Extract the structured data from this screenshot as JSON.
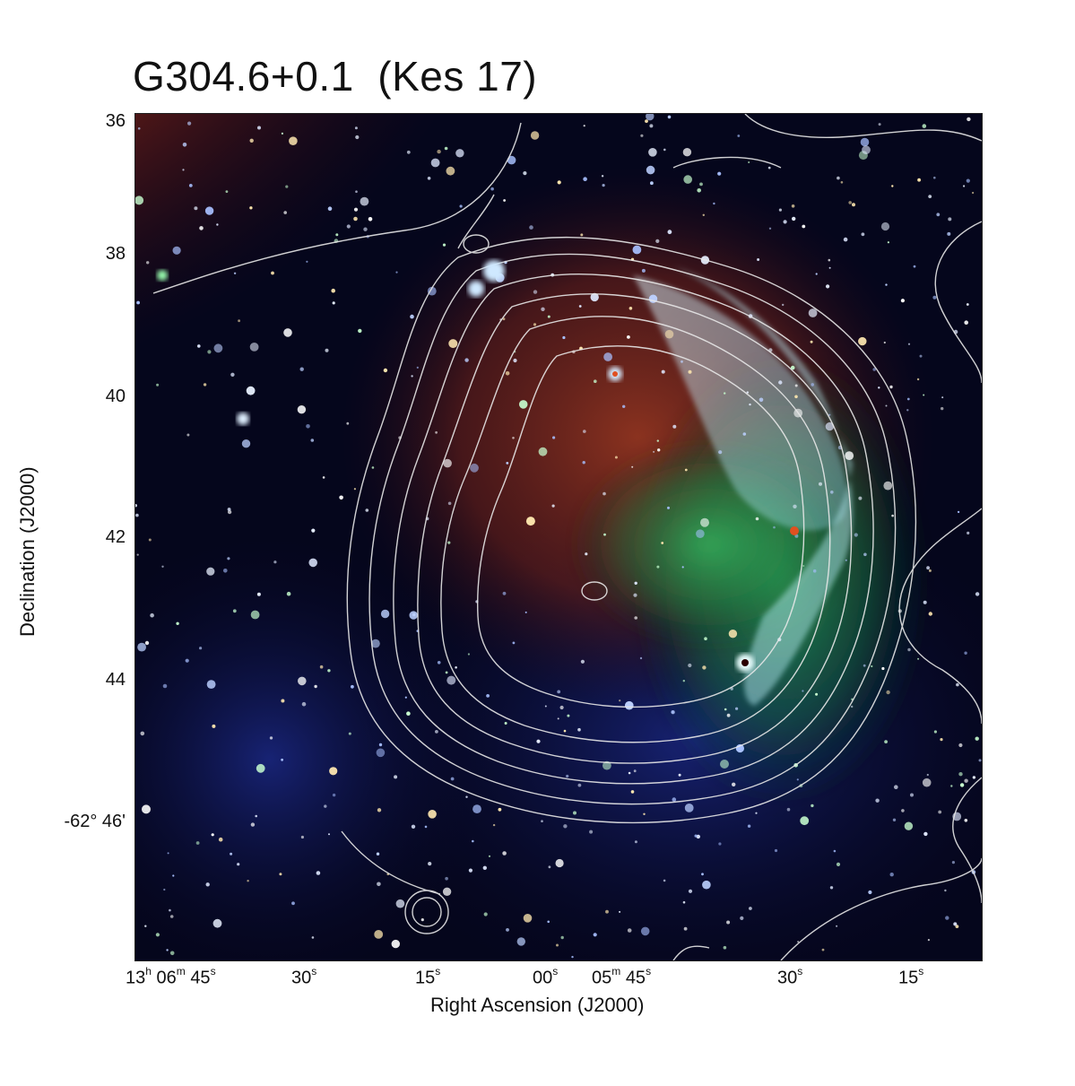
{
  "figure": {
    "title": "G304.6+0.1  (Kes 17)",
    "x_axis_label": "Right Ascension (J2000)",
    "y_axis_label": "Declination (J2000)",
    "y_ticks": [
      "36",
      "38",
      "40",
      "42",
      "44",
      "-62° 46'"
    ],
    "x_ticks": [
      {
        "h": "13",
        "m": "06",
        "s": "45"
      },
      {
        "s": "30"
      },
      {
        "s": "15"
      },
      {
        "s": "00"
      },
      {
        "m": "05",
        "s": "45"
      },
      {
        "s": "30"
      },
      {
        "s": "15"
      }
    ]
  },
  "image": {
    "description_colors": {
      "background": "#05051a",
      "diffuse_red": "#b8401a",
      "diffuse_orange": "#e89a2a",
      "filament_cyan": "#bff6ff",
      "green_emission": "#2ec26a",
      "contour": "#e8e8e8"
    }
  }
}
